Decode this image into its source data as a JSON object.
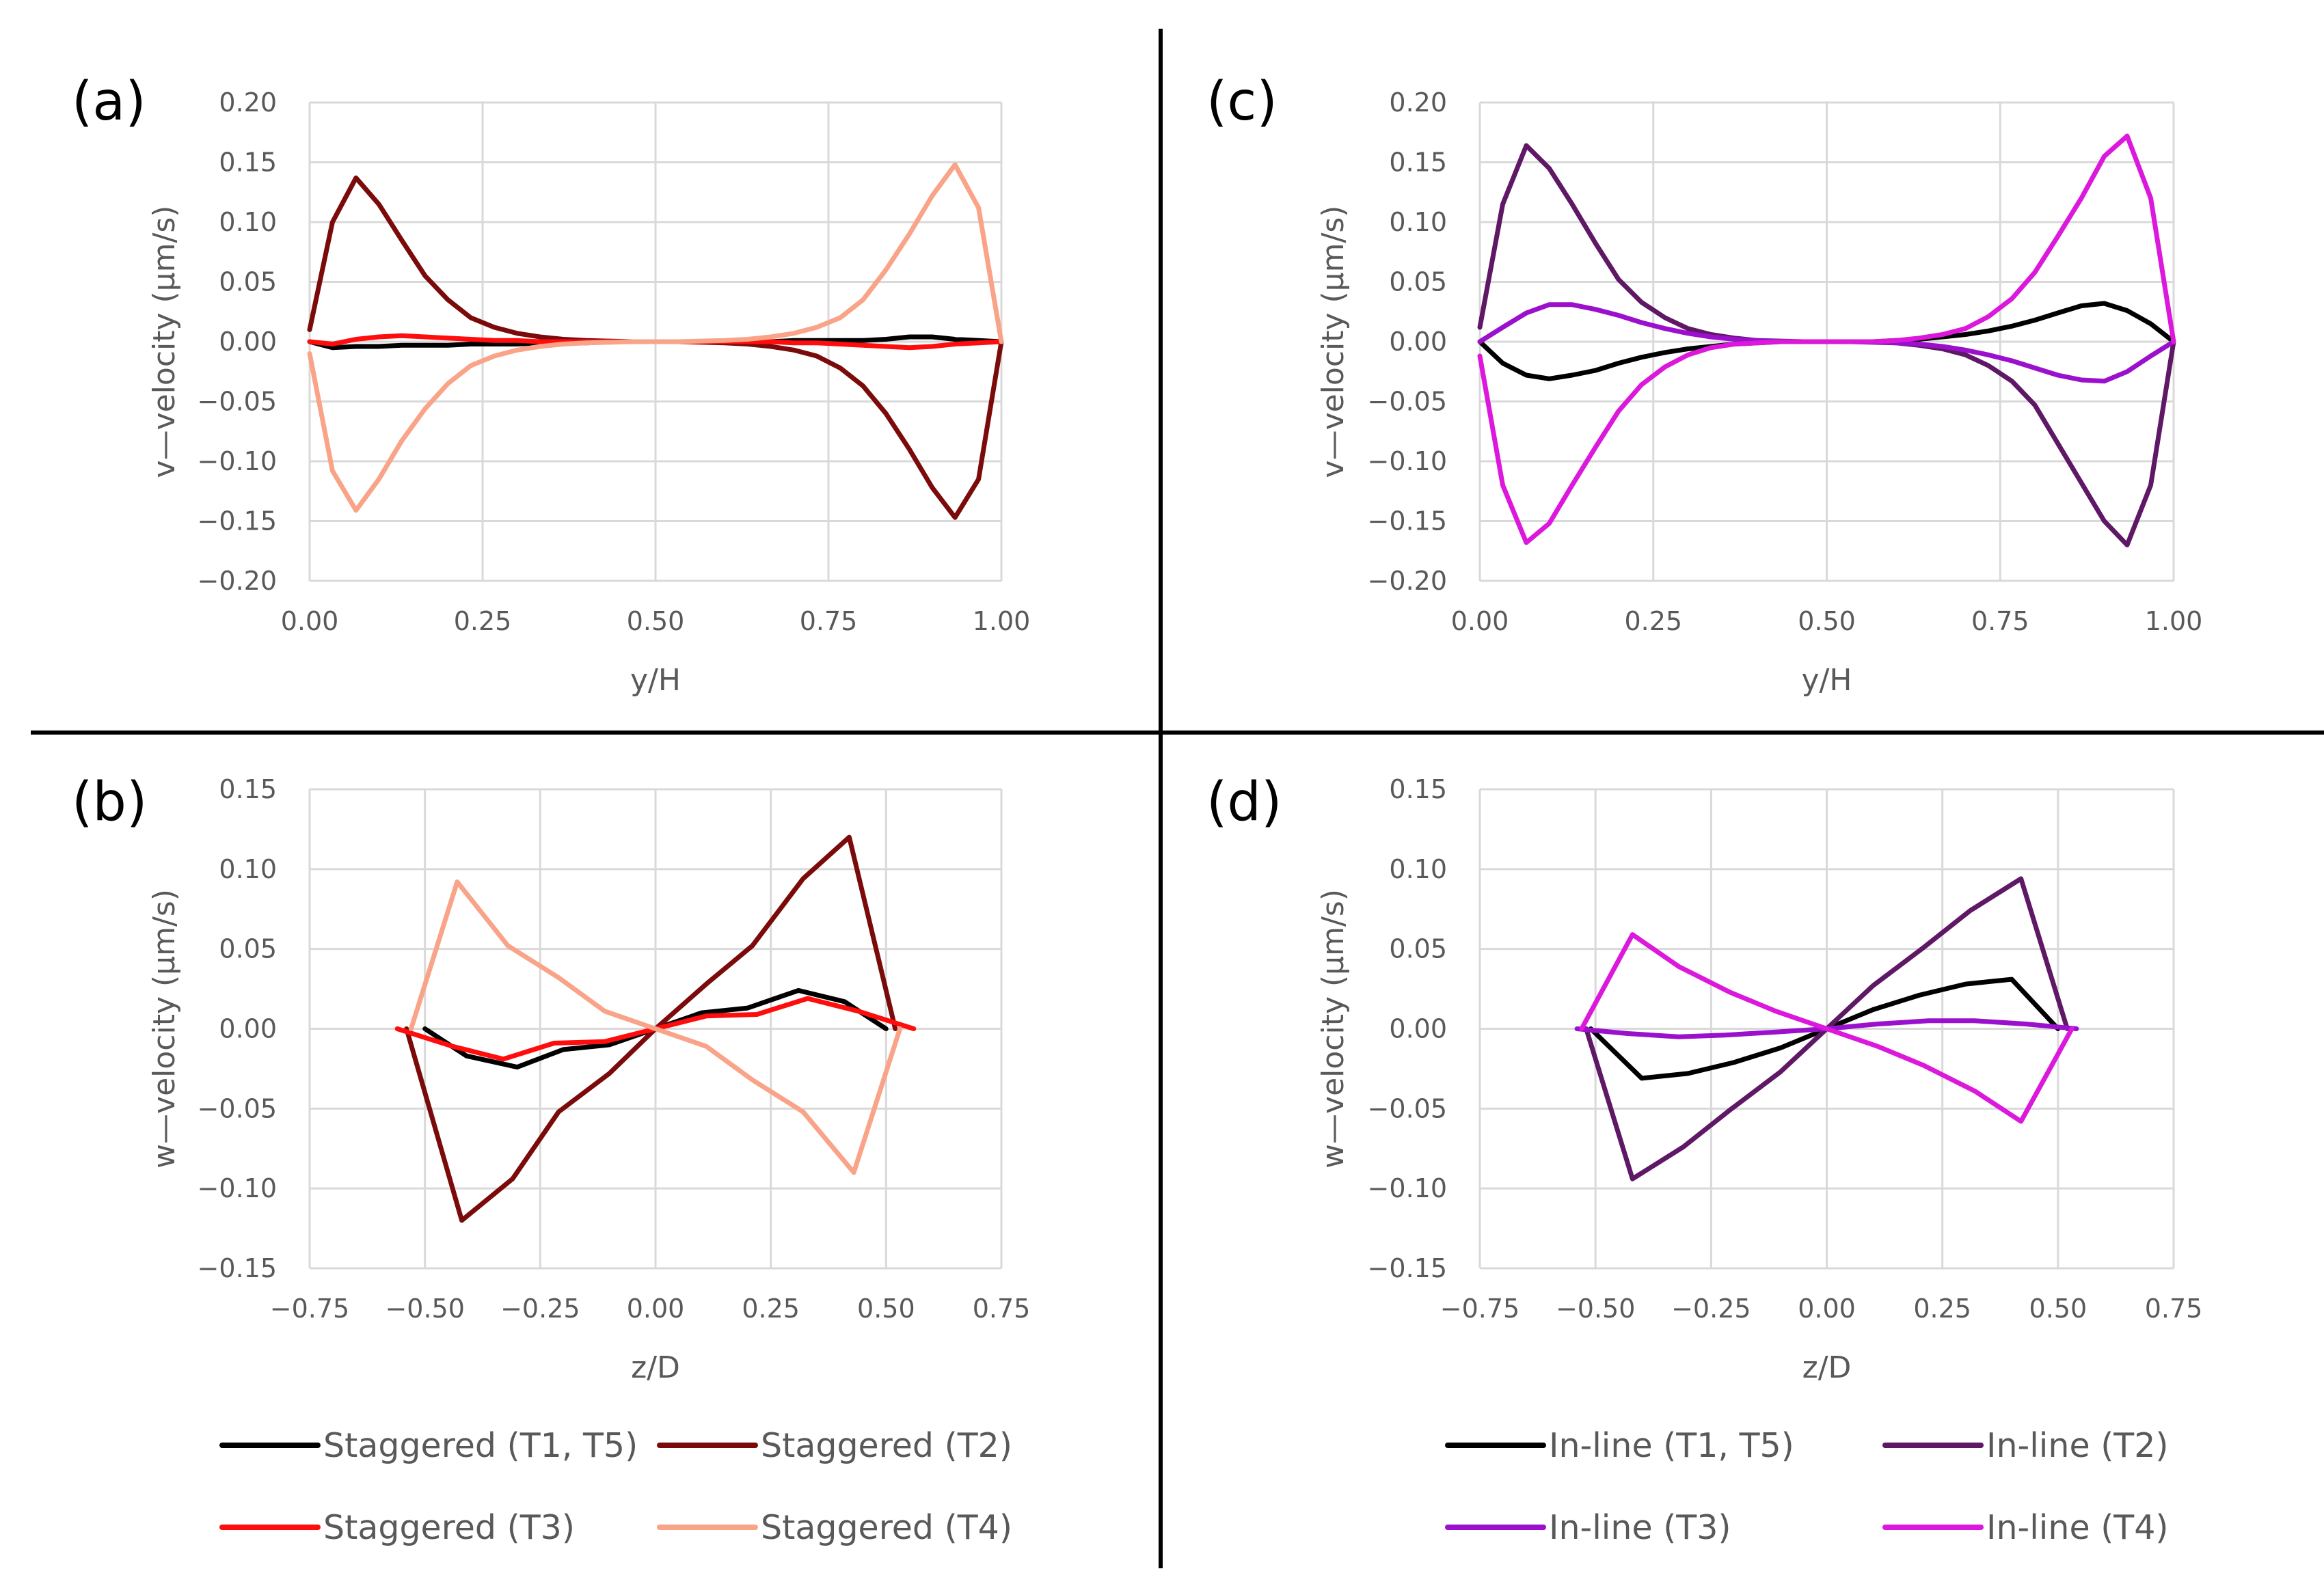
{
  "colors": {
    "stag_t1t5": "#000000",
    "stag_t2": "#7b0a0a",
    "stag_t3": "#ff0d0d",
    "stag_t4": "#f9a488",
    "inl_t1t5": "#000000",
    "inl_t2": "#5e1866",
    "inl_t3": "#9b10cc",
    "inl_t4": "#db18db"
  },
  "legends": {
    "staggered": [
      {
        "label": "Staggered (T1, T5)",
        "color": "#000000"
      },
      {
        "label": "Staggered (T2)",
        "color": "#7b0a0a"
      },
      {
        "label": "Staggered (T3)",
        "color": "#ff0d0d"
      },
      {
        "label": "Staggered (T4)",
        "color": "#f9a488"
      }
    ],
    "inline": [
      {
        "label": "In-line (T1, T5)",
        "color": "#000000"
      },
      {
        "label": "In-line (T2)",
        "color": "#5e1866"
      },
      {
        "label": "In-line (T3)",
        "color": "#9b10cc"
      },
      {
        "label": "In-line (T4)",
        "color": "#db18db"
      }
    ]
  },
  "chart_data": [
    {
      "panel": "(a)",
      "type": "line",
      "xlabel": "y/H",
      "ylabel": "v—velocity (µm/s)",
      "xlim": [
        0,
        1
      ],
      "ylim": [
        -0.2,
        0.2
      ],
      "xticks": [
        0,
        0.25,
        0.5,
        0.75,
        1.0
      ],
      "xtick_labels": [
        "0.00",
        "0.25",
        "0.50",
        "0.75",
        "1.00"
      ],
      "yticks": [
        0.2,
        0.15,
        0.1,
        0.05,
        0,
        -0.05,
        -0.1,
        -0.15,
        -0.2
      ],
      "ytick_labels": [
        "0.20",
        "0.15",
        "0.10",
        "0.05",
        "0.00",
        "−0.05",
        "−0.10",
        "−0.15",
        "−0.20"
      ],
      "series": [
        {
          "name": "Staggered (T1, T5)",
          "color": "#000000",
          "x": [
            0,
            0.033,
            0.067,
            0.1,
            0.133,
            0.167,
            0.2,
            0.233,
            0.267,
            0.3,
            0.333,
            0.367,
            0.4,
            0.433,
            0.467,
            0.5,
            0.533,
            0.567,
            0.6,
            0.633,
            0.667,
            0.7,
            0.733,
            0.767,
            0.8,
            0.833,
            0.867,
            0.9,
            0.933,
            0.967,
            1.0
          ],
          "y": [
            0,
            -0.005,
            -0.004,
            -0.004,
            -0.003,
            -0.003,
            -0.003,
            -0.002,
            -0.002,
            -0.002,
            -0.001,
            -0.001,
            -0.001,
            0,
            0,
            0,
            0,
            0,
            0,
            0,
            0,
            0.001,
            0.001,
            0.001,
            0.001,
            0.002,
            0.004,
            0.004,
            0.002,
            0.001,
            0
          ]
        },
        {
          "name": "Staggered (T2)",
          "color": "#7b0a0a",
          "x": [
            0,
            0.033,
            0.067,
            0.1,
            0.133,
            0.167,
            0.2,
            0.233,
            0.267,
            0.3,
            0.333,
            0.367,
            0.4,
            0.433,
            0.467,
            0.5,
            0.533,
            0.567,
            0.6,
            0.633,
            0.667,
            0.7,
            0.733,
            0.767,
            0.8,
            0.833,
            0.867,
            0.9,
            0.933,
            0.967,
            1.0
          ],
          "y": [
            0.01,
            0.1,
            0.137,
            0.115,
            0.085,
            0.055,
            0.035,
            0.02,
            0.012,
            0.007,
            0.004,
            0.002,
            0.001,
            0.0005,
            0,
            0,
            0,
            -0.0005,
            -0.001,
            -0.002,
            -0.004,
            -0.007,
            -0.012,
            -0.022,
            -0.037,
            -0.06,
            -0.09,
            -0.122,
            -0.147,
            -0.115,
            0
          ]
        },
        {
          "name": "Staggered (T3)",
          "color": "#ff0d0d",
          "x": [
            0,
            0.033,
            0.067,
            0.1,
            0.133,
            0.167,
            0.2,
            0.233,
            0.267,
            0.3,
            0.333,
            0.367,
            0.4,
            0.433,
            0.467,
            0.5,
            0.533,
            0.567,
            0.6,
            0.633,
            0.667,
            0.7,
            0.733,
            0.767,
            0.8,
            0.833,
            0.867,
            0.9,
            0.933,
            0.967,
            1.0
          ],
          "y": [
            0,
            -0.002,
            0.002,
            0.004,
            0.005,
            0.004,
            0.003,
            0.002,
            0.001,
            0.001,
            0,
            0,
            0,
            0,
            0,
            0,
            0,
            0,
            0,
            0,
            0,
            -0.001,
            -0.001,
            -0.002,
            -0.003,
            -0.004,
            -0.005,
            -0.004,
            -0.002,
            -0.001,
            0
          ]
        },
        {
          "name": "Staggered (T4)",
          "color": "#f9a488",
          "x": [
            0,
            0.033,
            0.067,
            0.1,
            0.133,
            0.167,
            0.2,
            0.233,
            0.267,
            0.3,
            0.333,
            0.367,
            0.4,
            0.433,
            0.467,
            0.5,
            0.533,
            0.567,
            0.6,
            0.633,
            0.667,
            0.7,
            0.733,
            0.767,
            0.8,
            0.833,
            0.867,
            0.9,
            0.933,
            0.967,
            1.0
          ],
          "y": [
            -0.01,
            -0.108,
            -0.141,
            -0.115,
            -0.083,
            -0.056,
            -0.035,
            -0.02,
            -0.012,
            -0.007,
            -0.004,
            -0.002,
            -0.001,
            -0.0005,
            0,
            0,
            0,
            0.0005,
            0.001,
            0.002,
            0.004,
            0.007,
            0.012,
            0.02,
            0.035,
            0.06,
            0.09,
            0.122,
            0.148,
            0.112,
            0
          ]
        }
      ]
    },
    {
      "panel": "(b)",
      "type": "line",
      "xlabel": "z/D",
      "ylabel": "w—velocity (µm/s)",
      "xlim": [
        -0.75,
        0.75
      ],
      "ylim": [
        -0.15,
        0.15
      ],
      "xticks": [
        -0.75,
        -0.5,
        -0.25,
        0,
        0.25,
        0.5,
        0.75
      ],
      "xtick_labels": [
        "−0.75",
        "−0.50",
        "−0.25",
        "0.00",
        "0.25",
        "0.50",
        "0.75"
      ],
      "yticks": [
        0.15,
        0.1,
        0.05,
        0,
        -0.05,
        -0.1,
        -0.15
      ],
      "ytick_labels": [
        "0.15",
        "0.10",
        "0.05",
        "0.00",
        "−0.05",
        "−0.10",
        "−0.15"
      ],
      "series": [
        {
          "name": "Staggered (T1, T5)",
          "color": "#000000",
          "x": [
            -0.5,
            -0.41,
            -0.3,
            -0.2,
            -0.1,
            0,
            0.1,
            0.2,
            0.31,
            0.41,
            0.5
          ],
          "y": [
            0,
            -0.017,
            -0.024,
            -0.013,
            -0.01,
            0,
            0.01,
            0.013,
            0.024,
            0.017,
            0
          ]
        },
        {
          "name": "Staggered (T2)",
          "color": "#7b0a0a",
          "x": [
            -0.54,
            -0.42,
            -0.31,
            -0.21,
            -0.1,
            0,
            0.11,
            0.21,
            0.32,
            0.42,
            0.52
          ],
          "y": [
            0,
            -0.12,
            -0.094,
            -0.052,
            -0.028,
            0,
            0.028,
            0.052,
            0.094,
            0.12,
            0
          ]
        },
        {
          "name": "Staggered (T3)",
          "color": "#ff0d0d",
          "x": [
            -0.56,
            -0.44,
            -0.33,
            -0.22,
            -0.11,
            0,
            0.11,
            0.22,
            0.33,
            0.44,
            0.56
          ],
          "y": [
            0,
            -0.011,
            -0.019,
            -0.009,
            -0.008,
            0,
            0.008,
            0.009,
            0.019,
            0.011,
            0
          ]
        },
        {
          "name": "Staggered (T4)",
          "color": "#f9a488",
          "x": [
            -0.53,
            -0.43,
            -0.32,
            -0.21,
            -0.11,
            0,
            0.11,
            0.21,
            0.32,
            0.43,
            0.53
          ],
          "y": [
            0,
            0.092,
            0.052,
            0.032,
            0.011,
            0,
            -0.011,
            -0.032,
            -0.052,
            -0.09,
            0
          ]
        }
      ]
    },
    {
      "panel": "(c)",
      "type": "line",
      "xlabel": "y/H",
      "ylabel": "v—velocity (µm/s)",
      "xlim": [
        0,
        1
      ],
      "ylim": [
        -0.2,
        0.2
      ],
      "xticks": [
        0,
        0.25,
        0.5,
        0.75,
        1.0
      ],
      "xtick_labels": [
        "0.00",
        "0.25",
        "0.50",
        "0.75",
        "1.00"
      ],
      "yticks": [
        0.2,
        0.15,
        0.1,
        0.05,
        0,
        -0.05,
        -0.1,
        -0.15,
        -0.2
      ],
      "ytick_labels": [
        "0.20",
        "0.15",
        "0.10",
        "0.05",
        "0.00",
        "−0.05",
        "−0.10",
        "−0.15",
        "−0.20"
      ],
      "series": [
        {
          "name": "In-line (T1, T5)",
          "color": "#000000",
          "x": [
            0,
            0.033,
            0.067,
            0.1,
            0.133,
            0.167,
            0.2,
            0.233,
            0.267,
            0.3,
            0.333,
            0.367,
            0.4,
            0.433,
            0.467,
            0.5,
            0.533,
            0.567,
            0.6,
            0.633,
            0.667,
            0.7,
            0.733,
            0.767,
            0.8,
            0.833,
            0.867,
            0.9,
            0.933,
            0.967,
            1.0
          ],
          "y": [
            0,
            -0.018,
            -0.028,
            -0.031,
            -0.028,
            -0.024,
            -0.018,
            -0.013,
            -0.009,
            -0.006,
            -0.004,
            -0.002,
            -0.001,
            0,
            0,
            0,
            0,
            0,
            0.001,
            0.002,
            0.004,
            0.006,
            0.009,
            0.013,
            0.018,
            0.024,
            0.03,
            0.032,
            0.026,
            0.015,
            0
          ]
        },
        {
          "name": "In-line (T2)",
          "color": "#5e1866",
          "x": [
            0,
            0.033,
            0.067,
            0.1,
            0.133,
            0.167,
            0.2,
            0.233,
            0.267,
            0.3,
            0.333,
            0.367,
            0.4,
            0.433,
            0.467,
            0.5,
            0.533,
            0.567,
            0.6,
            0.633,
            0.667,
            0.7,
            0.733,
            0.767,
            0.8,
            0.833,
            0.867,
            0.9,
            0.933,
            0.967,
            1.0
          ],
          "y": [
            0.012,
            0.115,
            0.164,
            0.145,
            0.115,
            0.082,
            0.052,
            0.033,
            0.02,
            0.011,
            0.006,
            0.003,
            0.001,
            0.0005,
            0,
            0,
            0,
            -0.0005,
            -0.001,
            -0.003,
            -0.006,
            -0.011,
            -0.02,
            -0.033,
            -0.053,
            -0.085,
            -0.118,
            -0.15,
            -0.17,
            -0.12,
            0
          ]
        },
        {
          "name": "In-line (T3)",
          "color": "#9b10cc",
          "x": [
            0,
            0.033,
            0.067,
            0.1,
            0.133,
            0.167,
            0.2,
            0.233,
            0.267,
            0.3,
            0.333,
            0.367,
            0.4,
            0.433,
            0.467,
            0.5,
            0.533,
            0.567,
            0.6,
            0.633,
            0.667,
            0.7,
            0.733,
            0.767,
            0.8,
            0.833,
            0.867,
            0.9,
            0.933,
            0.967,
            1.0
          ],
          "y": [
            0,
            0.012,
            0.024,
            0.031,
            0.031,
            0.027,
            0.022,
            0.016,
            0.011,
            0.007,
            0.004,
            0.002,
            0.001,
            0,
            0,
            0,
            0,
            0,
            -0.001,
            -0.002,
            -0.004,
            -0.007,
            -0.011,
            -0.016,
            -0.022,
            -0.028,
            -0.032,
            -0.033,
            -0.025,
            -0.012,
            0
          ]
        },
        {
          "name": "In-line (T4)",
          "color": "#db18db",
          "x": [
            0,
            0.033,
            0.067,
            0.1,
            0.133,
            0.167,
            0.2,
            0.233,
            0.267,
            0.3,
            0.333,
            0.367,
            0.4,
            0.433,
            0.467,
            0.5,
            0.533,
            0.567,
            0.6,
            0.633,
            0.667,
            0.7,
            0.733,
            0.767,
            0.8,
            0.833,
            0.867,
            0.9,
            0.933,
            0.967,
            1.0
          ],
          "y": [
            -0.012,
            -0.12,
            -0.168,
            -0.152,
            -0.12,
            -0.088,
            -0.058,
            -0.036,
            -0.021,
            -0.011,
            -0.005,
            -0.002,
            -0.001,
            0,
            0,
            0,
            0,
            0,
            0.001,
            0.003,
            0.006,
            0.011,
            0.021,
            0.036,
            0.058,
            0.088,
            0.12,
            0.155,
            0.172,
            0.12,
            0
          ]
        }
      ]
    },
    {
      "panel": "(d)",
      "type": "line",
      "xlabel": "z/D",
      "ylabel": "w—velocity (µm/s)",
      "xlim": [
        -0.75,
        0.75
      ],
      "ylim": [
        -0.15,
        0.15
      ],
      "xticks": [
        -0.75,
        -0.5,
        -0.25,
        0,
        0.25,
        0.5,
        0.75
      ],
      "xtick_labels": [
        "−0.75",
        "−0.50",
        "−0.25",
        "0.00",
        "0.25",
        "0.50",
        "0.75"
      ],
      "yticks": [
        0.15,
        0.1,
        0.05,
        0,
        -0.05,
        -0.1,
        -0.15
      ],
      "ytick_labels": [
        "0.15",
        "0.10",
        "0.05",
        "0.00",
        "−0.05",
        "−0.10",
        "−0.15"
      ],
      "series": [
        {
          "name": "In-line (T1, T5)",
          "color": "#000000",
          "x": [
            -0.51,
            -0.4,
            -0.3,
            -0.2,
            -0.1,
            0,
            0.1,
            0.2,
            0.3,
            0.4,
            0.5
          ],
          "y": [
            0,
            -0.031,
            -0.028,
            -0.021,
            -0.012,
            0,
            0.012,
            0.021,
            0.028,
            0.031,
            0
          ]
        },
        {
          "name": "In-line (T2)",
          "color": "#5e1866",
          "x": [
            -0.52,
            -0.42,
            -0.31,
            -0.21,
            -0.1,
            0,
            0.1,
            0.21,
            0.31,
            0.42,
            0.52
          ],
          "y": [
            0,
            -0.094,
            -0.074,
            -0.051,
            -0.027,
            0,
            0.027,
            0.051,
            0.074,
            0.094,
            0
          ]
        },
        {
          "name": "In-line (T3)",
          "color": "#9b10cc",
          "x": [
            -0.54,
            -0.43,
            -0.32,
            -0.22,
            -0.11,
            0,
            0.11,
            0.22,
            0.32,
            0.43,
            0.54
          ],
          "y": [
            0,
            -0.003,
            -0.005,
            -0.004,
            -0.002,
            0,
            0.003,
            0.005,
            0.005,
            0.003,
            0
          ]
        },
        {
          "name": "In-line (T4)",
          "color": "#db18db",
          "x": [
            -0.53,
            -0.42,
            -0.32,
            -0.21,
            -0.11,
            0,
            0.11,
            0.21,
            0.32,
            0.42,
            0.53
          ],
          "y": [
            0,
            0.059,
            0.039,
            0.023,
            0.011,
            0,
            -0.011,
            -0.023,
            -0.039,
            -0.058,
            0
          ]
        }
      ]
    }
  ]
}
